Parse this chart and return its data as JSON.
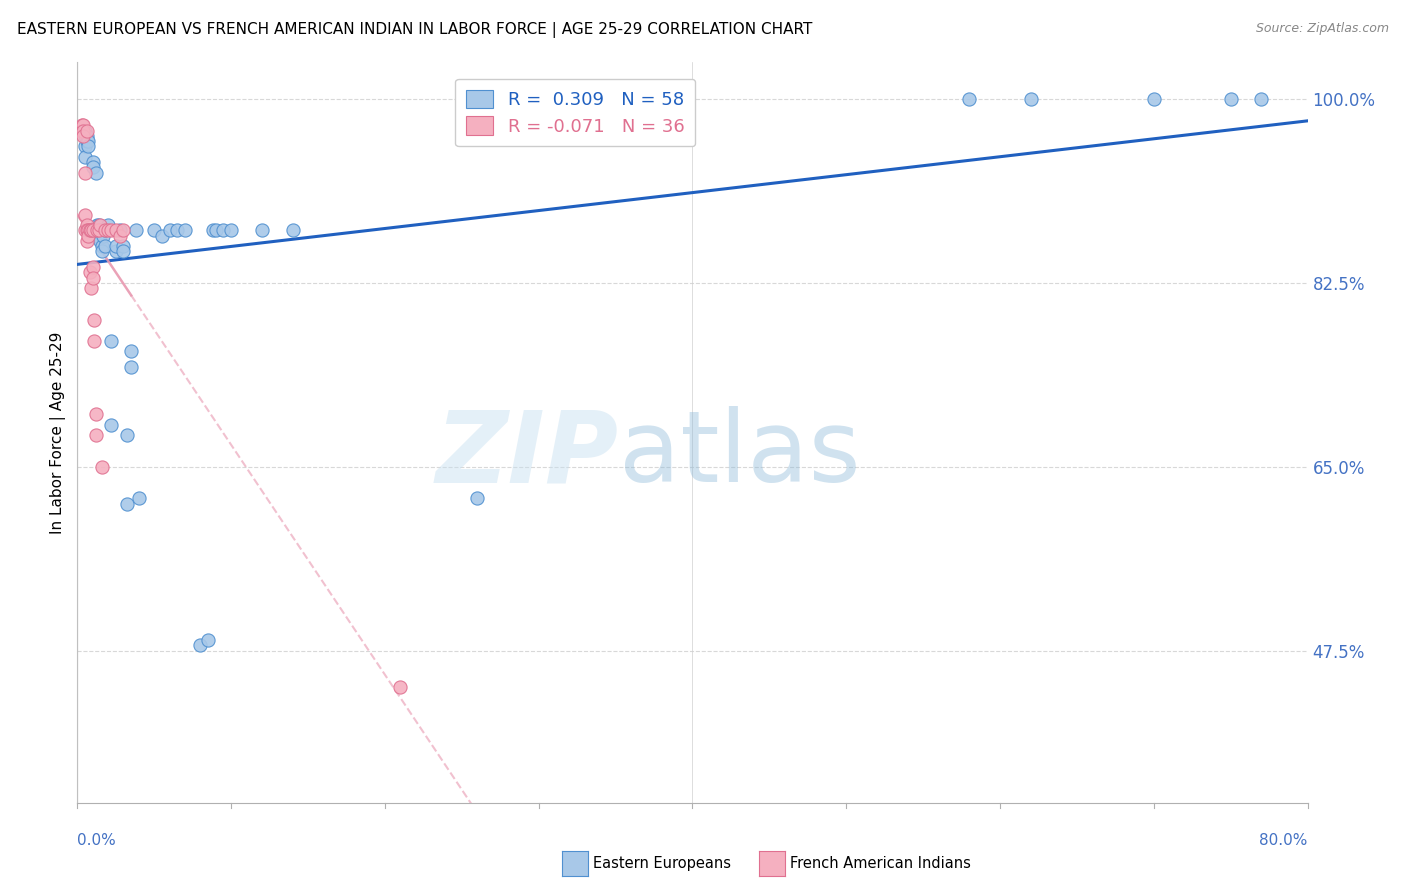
{
  "title": "EASTERN EUROPEAN VS FRENCH AMERICAN INDIAN IN LABOR FORCE | AGE 25-29 CORRELATION CHART",
  "source": "Source: ZipAtlas.com",
  "ylabel": "In Labor Force | Age 25-29",
  "xlim": [
    0.0,
    80.0
  ],
  "ylim": [
    33.0,
    103.5
  ],
  "blue_R": "0.309",
  "blue_N": "58",
  "pink_R": "-0.071",
  "pink_N": "36",
  "blue_dot_color": "#a8c8e8",
  "blue_dot_edge": "#5090d0",
  "pink_dot_color": "#f5b0c0",
  "pink_dot_edge": "#e07090",
  "blue_line_color": "#2060c0",
  "pink_line_color": "#e898b0",
  "ytick_vals": [
    47.5,
    65.0,
    82.5,
    100.0
  ],
  "ytick_labels": [
    "47.5%",
    "65.0%",
    "82.5%",
    "100.0%"
  ],
  "blue_x": [
    0.5,
    0.5,
    0.5,
    0.5,
    0.6,
    0.6,
    0.7,
    0.7,
    0.8,
    0.8,
    0.9,
    1.0,
    1.0,
    1.2,
    1.2,
    1.3,
    1.3,
    1.4,
    1.5,
    1.5,
    1.6,
    1.6,
    1.7,
    1.8,
    1.8,
    2.0,
    2.2,
    2.2,
    2.5,
    2.5,
    2.8,
    3.0,
    3.0,
    3.2,
    3.2,
    3.5,
    3.5,
    3.8,
    4.0,
    5.0,
    5.5,
    6.0,
    6.5,
    7.0,
    8.0,
    8.5,
    8.8,
    9.0,
    9.5,
    10.0,
    12.0,
    14.0,
    26.0,
    58.0,
    62.0,
    70.0,
    75.0,
    77.0
  ],
  "blue_y": [
    97.0,
    96.5,
    95.5,
    94.5,
    96.5,
    96.0,
    96.0,
    95.5,
    87.5,
    87.0,
    87.5,
    94.0,
    93.5,
    93.0,
    87.5,
    88.0,
    87.0,
    88.0,
    87.5,
    86.5,
    86.0,
    85.5,
    87.0,
    87.5,
    86.0,
    88.0,
    77.0,
    69.0,
    85.5,
    86.0,
    87.5,
    86.0,
    85.5,
    68.0,
    61.5,
    74.5,
    76.0,
    87.5,
    62.0,
    87.5,
    87.0,
    87.5,
    87.5,
    87.5,
    48.0,
    48.5,
    87.5,
    87.5,
    87.5,
    87.5,
    87.5,
    87.5,
    62.0,
    100.0,
    100.0,
    100.0,
    100.0,
    100.0
  ],
  "pink_x": [
    0.3,
    0.3,
    0.4,
    0.4,
    0.4,
    0.5,
    0.5,
    0.5,
    0.6,
    0.6,
    0.6,
    0.6,
    0.7,
    0.7,
    0.8,
    0.8,
    0.9,
    0.9,
    1.0,
    1.0,
    1.0,
    1.1,
    1.1,
    1.2,
    1.2,
    1.3,
    1.4,
    1.5,
    1.6,
    1.8,
    2.0,
    2.2,
    2.5,
    2.8,
    3.0,
    21.0
  ],
  "pink_y": [
    97.5,
    97.0,
    97.5,
    97.0,
    96.5,
    93.0,
    89.0,
    87.5,
    97.0,
    88.0,
    87.5,
    86.5,
    87.5,
    87.0,
    87.5,
    83.5,
    87.5,
    82.0,
    87.5,
    84.0,
    83.0,
    79.0,
    77.0,
    70.0,
    68.0,
    87.5,
    87.5,
    88.0,
    65.0,
    87.5,
    87.5,
    87.5,
    87.5,
    87.0,
    87.5,
    44.0
  ],
  "legend_label_blue": "Eastern Europeans",
  "legend_label_pink": "French American Indians"
}
